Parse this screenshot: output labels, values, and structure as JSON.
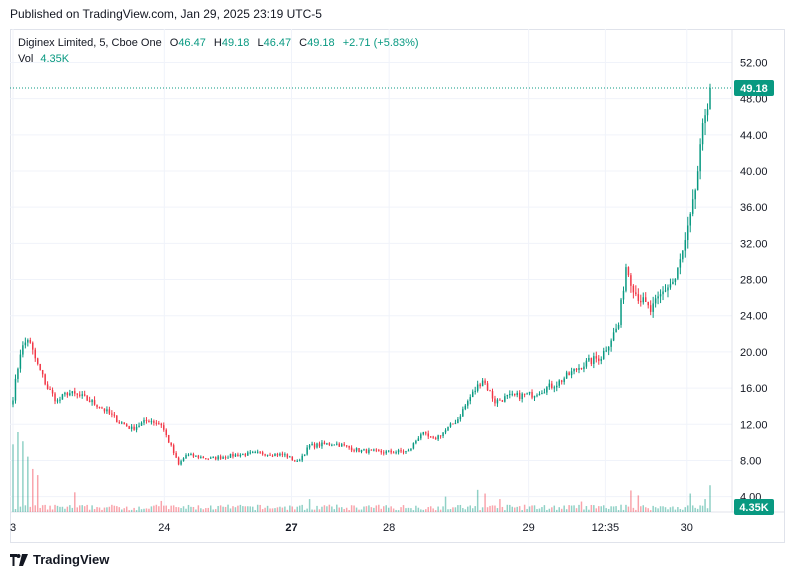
{
  "published": "Published on TradingView.com, Jan 29, 2025 23:19 UTC-5",
  "legend": {
    "symbol": "Diginex Limited, 5, Cboe One",
    "o_label": "O",
    "o_value": "46.47",
    "h_label": "H",
    "h_value": "49.18",
    "l_label": "L",
    "l_value": "46.47",
    "c_label": "C",
    "c_value": "49.18",
    "change": "+2.71 (+5.83%)",
    "vol_label": "Vol",
    "vol_value": "4.35K"
  },
  "brand": "TradingView",
  "colors": {
    "up": "#089981",
    "down": "#f23645",
    "grid": "#f0f3fa",
    "text": "#131722"
  },
  "chart_data": {
    "type": "candlestick",
    "y_ticks": [
      "4.00",
      "8.00",
      "12.00",
      "16.00",
      "20.00",
      "24.00",
      "28.00",
      "32.00",
      "36.00",
      "40.00",
      "44.00",
      "48.00",
      "52.00"
    ],
    "ylim": [
      2.3,
      55.7
    ],
    "x_ticks": [
      {
        "label": "3",
        "pos": 0.0,
        "bold": false
      },
      {
        "label": "24",
        "pos": 0.2171,
        "bold": false
      },
      {
        "label": "27",
        "pos": 0.3996,
        "bold": true
      },
      {
        "label": "28",
        "pos": 0.5397,
        "bold": false
      },
      {
        "label": "29",
        "pos": 0.7398,
        "bold": false
      },
      {
        "label": "12:35",
        "pos": 0.8499,
        "bold": false
      },
      {
        "label": "30",
        "pos": 0.9667,
        "bold": false
      }
    ],
    "last_price": "49.18",
    "last_volume": "4.35K",
    "volume_max": 13000,
    "anchors": [
      [
        0,
        15.0
      ],
      [
        3,
        20.0
      ],
      [
        6,
        21.5
      ],
      [
        10,
        18.5
      ],
      [
        14,
        16.0
      ],
      [
        18,
        14.5
      ],
      [
        22,
        15.5
      ],
      [
        28,
        15.0
      ],
      [
        35,
        14.0
      ],
      [
        42,
        12.5
      ],
      [
        48,
        11.5
      ],
      [
        55,
        12.5
      ],
      [
        60,
        12.0
      ],
      [
        64,
        9.5
      ],
      [
        67,
        7.5
      ],
      [
        70,
        8.6
      ],
      [
        80,
        8.2
      ],
      [
        90,
        8.6
      ],
      [
        100,
        8.8
      ],
      [
        110,
        8.6
      ],
      [
        115,
        7.8
      ],
      [
        120,
        9.6
      ],
      [
        130,
        9.9
      ],
      [
        140,
        9.1
      ],
      [
        150,
        8.9
      ],
      [
        160,
        9.0
      ],
      [
        165,
        11.0
      ],
      [
        170,
        10.3
      ],
      [
        175,
        11.3
      ],
      [
        180,
        12.6
      ],
      [
        185,
        15.0
      ],
      [
        190,
        17.0
      ],
      [
        195,
        14.5
      ],
      [
        200,
        15.0
      ],
      [
        210,
        15.3
      ],
      [
        220,
        16.5
      ],
      [
        230,
        18.5
      ],
      [
        238,
        19.5
      ],
      [
        245,
        23.0
      ],
      [
        248,
        29.5
      ],
      [
        252,
        26.5
      ],
      [
        258,
        24.5
      ],
      [
        264,
        27.0
      ],
      [
        268,
        28.0
      ],
      [
        272,
        32.0
      ],
      [
        275,
        36.0
      ],
      [
        278,
        42.0
      ],
      [
        280,
        46.5
      ],
      [
        282,
        49.18
      ]
    ],
    "volume_spikes": [
      [
        0,
        11000
      ],
      [
        2,
        13000
      ],
      [
        4,
        11500
      ],
      [
        6,
        9000
      ],
      [
        8,
        7000
      ],
      [
        10,
        6000
      ],
      [
        25,
        3200
      ],
      [
        60,
        1800
      ],
      [
        120,
        2100
      ],
      [
        175,
        2500
      ],
      [
        188,
        3600
      ],
      [
        191,
        3000
      ],
      [
        197,
        2100
      ],
      [
        230,
        1700
      ],
      [
        250,
        3500
      ],
      [
        253,
        2700
      ],
      [
        274,
        3000
      ],
      [
        280,
        2100
      ],
      [
        282,
        4350
      ]
    ]
  }
}
